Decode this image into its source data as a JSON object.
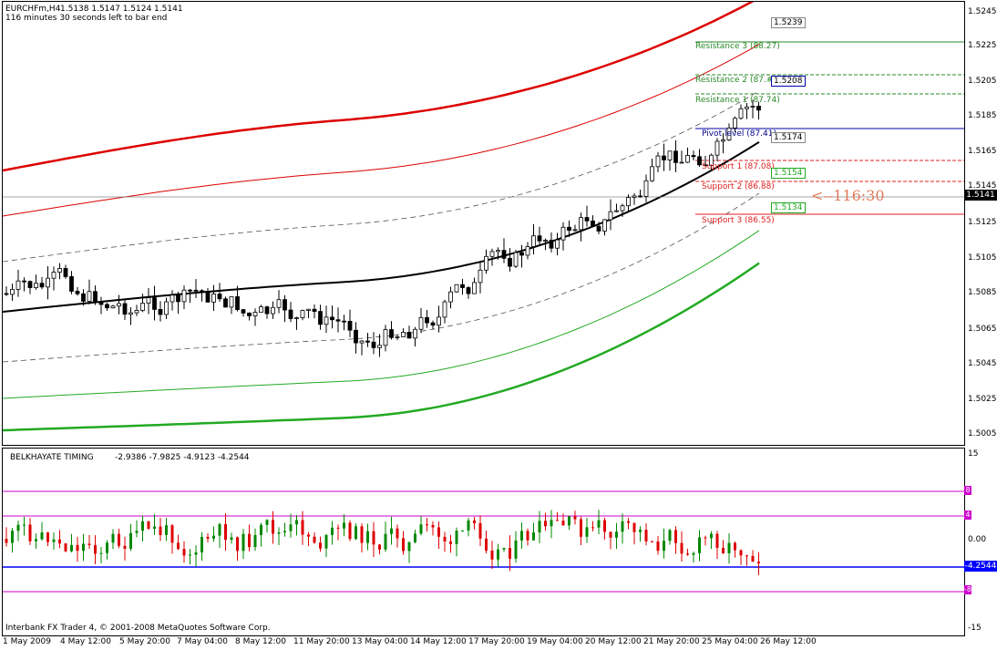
{
  "header": {
    "symbol": "EURCHFm,H4",
    "ohlc": "1.5138 1.5147 1.5124 1.5141",
    "bar_timer": "116 minutes 30 seconds left to bar end"
  },
  "countdown": "<--116:30",
  "current_price": "1.5141",
  "price_axis": [
    "1.5245",
    "1.5225",
    "1.5205",
    "1.5185",
    "1.5165",
    "1.5145",
    "1.5125",
    "1.5105",
    "1.5085",
    "1.5065",
    "1.5045",
    "1.5025",
    "1.5005"
  ],
  "levels": {
    "r3": "Resistance 3 (88.27)",
    "r2": "Resistance 2 (87.##)",
    "r1": "Resistance 1 (87.74)",
    "pivot": "Pivot level (87.41)",
    "s1": "Support 1 (87.08)",
    "s2": "Support 2 (86.88)",
    "s3": "Support 3 (86.55)"
  },
  "price_boxes": {
    "b1": "1.5239",
    "b2": "1.5208",
    "b3": "1.5174",
    "b4": "1.5154",
    "b5": "1.5134"
  },
  "indicator": {
    "name": "BELKHAYATE TIMING",
    "values": "-2.9386 -7.9825 -4.9123 -4.2544",
    "axis": [
      "15",
      "0.00",
      "-15"
    ],
    "current": "-4.2544",
    "level_tags": [
      "8",
      "4",
      "-8"
    ]
  },
  "copyright": "Interbank FX Trader 4, © 2001-2008 MetaQuotes Software Corp.",
  "time_axis": [
    "1 May 2009",
    "4 May 12:00",
    "5 May 20:00",
    "7 May 04:00",
    "8 May 12:00",
    "11 May 20:00",
    "13 May 04:00",
    "14 May 12:00",
    "17 May 20:00",
    "19 May 04:00",
    "20 May 12:00",
    "21 May 20:00",
    "25 May 04:00",
    "26 May 12:00"
  ],
  "colors": {
    "bull": "#ffffff",
    "bear": "#000000",
    "center": "#000000",
    "upper": "#dd0000",
    "lower": "#22aa22",
    "ind_bull": "#008800",
    "ind_bear": "#dd0000",
    "ind_level": "#cc00cc",
    "ind_zero": "#0000ff"
  }
}
